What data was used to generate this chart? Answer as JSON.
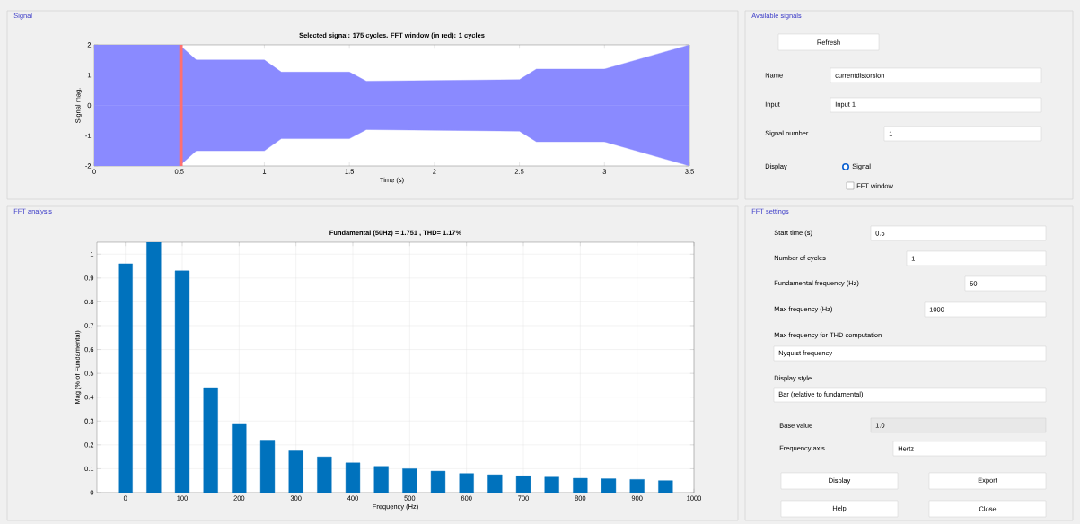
{
  "chart_data": [
    {
      "type": "area",
      "title": "Selected signal: 175 cycles. FFT window (in red): 1 cycles",
      "xlabel": "Time (s)",
      "ylabel": "Signal mag.",
      "annotations": [
        "Signal"
      ],
      "x": [
        0,
        0.5,
        0.6,
        1.0,
        1.1,
        1.5,
        1.6,
        2.5,
        2.6,
        3.0,
        3.5
      ],
      "series": [
        {
          "color": "#8a8aff",
          "values": [
            2,
            2,
            1.5,
            1.5,
            1.1,
            1.1,
            0.8,
            0.85,
            1.2,
            1.2,
            2
          ]
        },
        {
          "color": "#8a8aff",
          "values": [
            -2,
            -2,
            -1.5,
            -1.5,
            -1.1,
            -1.1,
            -0.8,
            -0.85,
            -1.2,
            -1.2,
            -2
          ]
        }
      ],
      "xlim": [
        0,
        3.5
      ],
      "ylim": [
        -2,
        2
      ],
      "xticks": [
        0,
        0.5,
        1,
        1.5,
        2,
        2.5,
        3,
        3.5
      ],
      "yticks": [
        -2,
        -1,
        0,
        1,
        2
      ],
      "bands": [
        {
          "axis": "x",
          "from": 0.5,
          "to": 0.52,
          "color": "#ff7070"
        }
      ]
    },
    {
      "type": "bar",
      "title": "Fundamental (50Hz) = 1.751 , THD= 1.17%",
      "xlabel": "Frequency (Hz)",
      "ylabel": "Mag (% of Fundamental)",
      "annotations": [
        "FFT analysis"
      ],
      "x": [
        0,
        50,
        100,
        150,
        200,
        250,
        300,
        350,
        400,
        450,
        500,
        550,
        600,
        650,
        700,
        750,
        800,
        850,
        900,
        950
      ],
      "values": [
        0.96,
        1.05,
        0.93,
        0.44,
        0.29,
        0.22,
        0.175,
        0.15,
        0.125,
        0.11,
        0.1,
        0.09,
        0.08,
        0.075,
        0.07,
        0.065,
        0.06,
        0.058,
        0.055,
        0.05
      ],
      "color": "#0072bd",
      "xlim": [
        -50,
        1000
      ],
      "ylim": [
        0,
        1.05
      ],
      "xticks": [
        0,
        100,
        200,
        300,
        400,
        500,
        600,
        700,
        800,
        900,
        1000
      ],
      "yticks": [
        0,
        0.1,
        0.2,
        0.3,
        0.4,
        0.5,
        0.6,
        0.7,
        0.8,
        0.9,
        1
      ],
      "grid": true
    },
    {
      "type": "other",
      "title": "Available signals",
      "annotations": [
        "Refresh",
        "Name",
        "currentdistorsion",
        "Input",
        "Input 1",
        "Signal number",
        "1",
        "Display",
        "Signal",
        "FFT window"
      ]
    },
    {
      "type": "other",
      "title": "FFT settings",
      "annotations": [
        "Start time (s)",
        "0.5",
        "Number of cycles",
        "1",
        "Fundamental frequency (Hz)",
        "50",
        "Max frequency (Hz)",
        "1000",
        "Max frequency for THD computation",
        "Nyquist frequency",
        "Display style",
        "Bar (relative to fundamental)",
        "Base value",
        "1.0",
        "Frequency axis",
        "Hertz",
        "Display",
        "Export",
        "Help",
        "Close"
      ]
    }
  ]
}
